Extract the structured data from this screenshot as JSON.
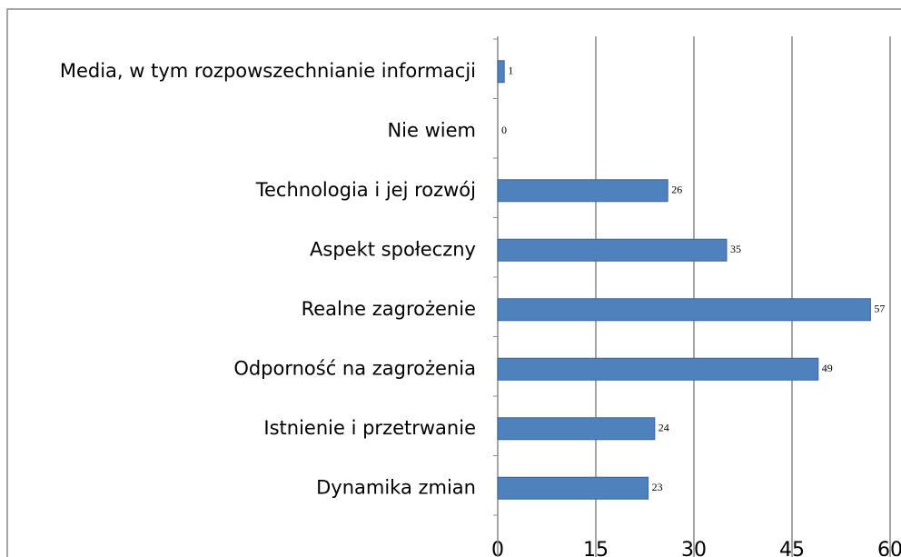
{
  "chart_data": {
    "type": "bar",
    "orientation": "horizontal",
    "categories": [
      "Media, w tym rozpowszechnianie informacji",
      "Nie wiem",
      "Technologia i jej rozwój",
      "Aspekt społeczny",
      "Realne zagrożenie",
      "Odporność na zagrożenia",
      "Istnienie i przetrwanie",
      "Dynamika zmian"
    ],
    "values": [
      1,
      0,
      26,
      35,
      57,
      49,
      24,
      23
    ],
    "color": "#4f81bd",
    "xlim": [
      0,
      60
    ],
    "xticks": [
      0,
      15,
      30,
      45,
      60
    ],
    "grid": true
  }
}
